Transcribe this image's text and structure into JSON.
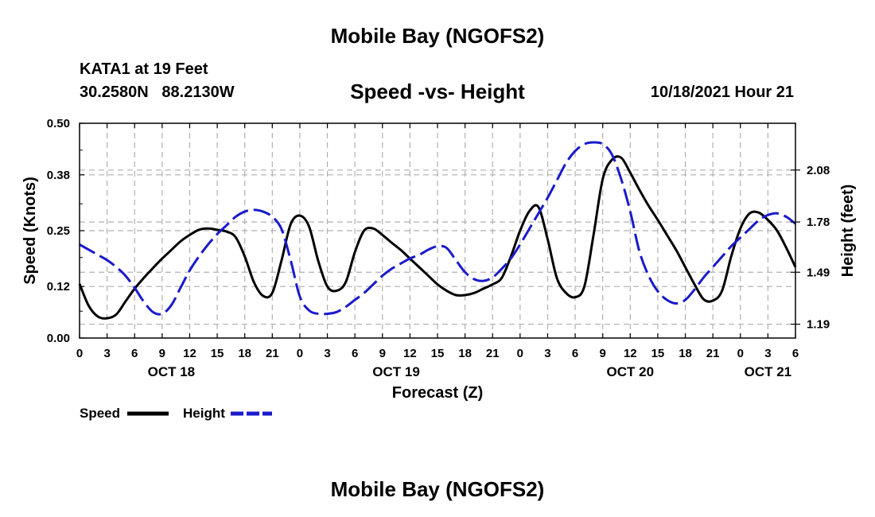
{
  "header": {
    "title": "Mobile Bay (NGOFS2)",
    "station": "KATA1 at 19 Feet",
    "coords": "30.2580N   88.2130W",
    "subtitle": "Speed -vs- Height",
    "datetime": "10/18/2021 Hour 21"
  },
  "footer": {
    "title": "Mobile Bay (NGOFS2)"
  },
  "chart_data": {
    "type": "line",
    "title": "Speed -vs- Height",
    "xlabel": "Forecast (Z)",
    "ylabel": "Speed (Knots)",
    "y2label": "Height (feet)",
    "xlim": [
      0,
      78
    ],
    "ylim": [
      0,
      0.5
    ],
    "y2lim": [
      1.11,
      2.35
    ],
    "grid": true,
    "x_ticks": [
      0,
      3,
      6,
      9,
      12,
      15,
      18,
      21,
      24,
      27,
      30,
      33,
      36,
      39,
      42,
      45,
      48,
      51,
      54,
      57,
      60,
      63,
      66,
      69,
      72,
      75,
      78
    ],
    "x_tick_labels": [
      "0",
      "3",
      "6",
      "9",
      "12",
      "15",
      "18",
      "21",
      "0",
      "3",
      "6",
      "9",
      "12",
      "15",
      "18",
      "21",
      "0",
      "3",
      "6",
      "9",
      "12",
      "15",
      "18",
      "21",
      "0",
      "3",
      "6"
    ],
    "day_labels": [
      {
        "text": "OCT 18",
        "hour": 10
      },
      {
        "text": "OCT 19",
        "hour": 34.5
      },
      {
        "text": "OCT 20",
        "hour": 60
      },
      {
        "text": "OCT 21",
        "hour": 75
      }
    ],
    "y_ticks": [
      0.0,
      0.12,
      0.25,
      0.38,
      0.5
    ],
    "y_tick_labels": [
      "0.00",
      "0.12",
      "0.25",
      "0.38",
      "0.50"
    ],
    "y2_ticks": [
      1.19,
      1.49,
      1.78,
      2.08
    ],
    "y2_tick_labels": [
      "1.19",
      "1.49",
      "1.78",
      "2.08"
    ],
    "series": [
      {
        "name": "Speed",
        "axis": "left",
        "color": "#000000",
        "style": "solid",
        "x": [
          0,
          1,
          2,
          3,
          4,
          5,
          6,
          7,
          8,
          9,
          10,
          11,
          12,
          13,
          14,
          15,
          16,
          17,
          18,
          19,
          20,
          21,
          22,
          23,
          24,
          25,
          26,
          27,
          28,
          29,
          30,
          31,
          32,
          33,
          34,
          35,
          36,
          37,
          38,
          39,
          40,
          41,
          42,
          43,
          44,
          45,
          46,
          47,
          48,
          49,
          50,
          51,
          52,
          53,
          54,
          55,
          56,
          57,
          58,
          59,
          60,
          61,
          62,
          63,
          64,
          65,
          66,
          67,
          68,
          69,
          70,
          71,
          72,
          73,
          74,
          75,
          76,
          77,
          78
        ],
        "values": [
          0.126,
          0.075,
          0.05,
          0.046,
          0.055,
          0.085,
          0.115,
          0.14,
          0.163,
          0.185,
          0.205,
          0.225,
          0.24,
          0.252,
          0.255,
          0.252,
          0.248,
          0.235,
          0.19,
          0.13,
          0.098,
          0.105,
          0.18,
          0.265,
          0.285,
          0.26,
          0.18,
          0.12,
          0.11,
          0.13,
          0.2,
          0.25,
          0.255,
          0.24,
          0.222,
          0.205,
          0.185,
          0.165,
          0.145,
          0.125,
          0.11,
          0.1,
          0.1,
          0.105,
          0.115,
          0.125,
          0.14,
          0.19,
          0.25,
          0.295,
          0.305,
          0.23,
          0.14,
          0.105,
          0.095,
          0.12,
          0.24,
          0.37,
          0.415,
          0.42,
          0.385,
          0.345,
          0.308,
          0.275,
          0.24,
          0.205,
          0.165,
          0.125,
          0.09,
          0.087,
          0.11,
          0.19,
          0.255,
          0.29,
          0.292,
          0.275,
          0.25,
          0.21,
          0.165
        ]
      },
      {
        "name": "Height",
        "axis": "right",
        "color": "#1a1acc",
        "style": "dashed",
        "x": [
          0,
          1,
          2,
          3,
          4,
          5,
          6,
          7,
          8,
          9,
          10,
          11,
          12,
          13,
          14,
          15,
          16,
          17,
          18,
          19,
          20,
          21,
          22,
          23,
          24,
          25,
          26,
          27,
          28,
          29,
          30,
          31,
          32,
          33,
          34,
          35,
          36,
          37,
          38,
          39,
          40,
          41,
          42,
          43,
          44,
          45,
          46,
          47,
          48,
          49,
          50,
          51,
          52,
          53,
          54,
          55,
          56,
          57,
          58,
          59,
          60,
          61,
          62,
          63,
          64,
          65,
          66,
          67,
          68,
          69,
          70,
          71,
          72,
          73,
          74,
          75,
          76,
          77,
          78
        ],
        "values": [
          1.65,
          1.62,
          1.59,
          1.56,
          1.52,
          1.47,
          1.4,
          1.32,
          1.26,
          1.25,
          1.3,
          1.4,
          1.5,
          1.58,
          1.65,
          1.71,
          1.76,
          1.81,
          1.84,
          1.85,
          1.84,
          1.81,
          1.74,
          1.56,
          1.35,
          1.27,
          1.25,
          1.25,
          1.26,
          1.29,
          1.33,
          1.37,
          1.42,
          1.47,
          1.51,
          1.54,
          1.57,
          1.59,
          1.62,
          1.64,
          1.63,
          1.56,
          1.49,
          1.45,
          1.44,
          1.46,
          1.51,
          1.57,
          1.65,
          1.74,
          1.83,
          1.92,
          2.02,
          2.12,
          2.19,
          2.23,
          2.24,
          2.23,
          2.17,
          2.03,
          1.84,
          1.61,
          1.47,
          1.38,
          1.33,
          1.31,
          1.33,
          1.39,
          1.46,
          1.52,
          1.58,
          1.64,
          1.69,
          1.74,
          1.79,
          1.82,
          1.83,
          1.81,
          1.77
        ]
      }
    ],
    "legend": {
      "position": "bottom-left",
      "items": [
        {
          "label": "Speed",
          "color": "#000000",
          "style": "solid"
        },
        {
          "label": "Height",
          "color": "#1a1acc",
          "style": "dashed"
        }
      ]
    }
  }
}
